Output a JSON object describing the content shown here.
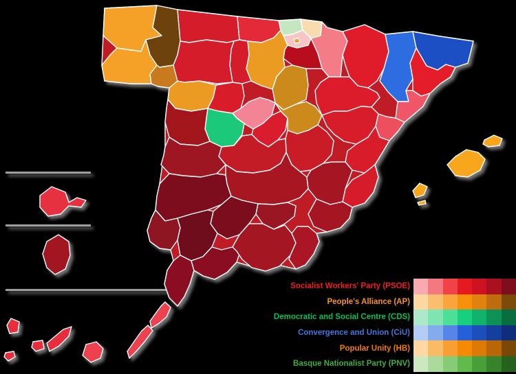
{
  "map": {
    "type": "choropleth",
    "subject": "spain-provinces-election-results",
    "stroke_color": "#ffffff",
    "canvas_background": "#000000",
    "divider_color": "#9e9e9e",
    "base_color": "#c01a26",
    "provinces": {
      "a-coruna": {
        "name": "A Coruña",
        "color": "#f5a026"
      },
      "lugo": {
        "name": "Lugo",
        "color": "#6e4209"
      },
      "pontevedra": {
        "name": "Pontevedra",
        "color": "#f5a026"
      },
      "ourense": {
        "name": "Ourense",
        "color": "#c87a1b"
      },
      "asturias": {
        "name": "Asturias",
        "color": "#d51c2a"
      },
      "cantabria": {
        "name": "Cantabria",
        "color": "#e42b37"
      },
      "bizkaia": {
        "name": "Biscay",
        "color": "#c4e6c0"
      },
      "gipuzkoa": {
        "name": "Gipuzkoa",
        "color": "#f8dcb0"
      },
      "alava": {
        "name": "Álava",
        "color": "#f6c6c6"
      },
      "navarra": {
        "name": "Navarre",
        "color": "#f37c86"
      },
      "la-rioja": {
        "name": "La Rioja",
        "color": "#b80f1f"
      },
      "burgos": {
        "name": "Burgos",
        "color": "#ec9b24"
      },
      "palencia": {
        "name": "Palencia",
        "color": "#d51c2a"
      },
      "leon": {
        "name": "León",
        "color": "#d51c2a"
      },
      "zamora": {
        "name": "Zamora",
        "color": "#ec9b24"
      },
      "valladolid": {
        "name": "Valladolid",
        "color": "#d81e2c"
      },
      "soria": {
        "name": "Soria",
        "color": "#cd8a1e"
      },
      "segovia": {
        "name": "Segovia",
        "color": "#f28495"
      },
      "avila": {
        "name": "Ávila",
        "color": "#1fc87a"
      },
      "salamanca": {
        "name": "Salamanca",
        "color": "#a2131f"
      },
      "madrid": {
        "name": "Madrid",
        "color": "#d91e2e"
      },
      "guadalajara": {
        "name": "Guadalajara",
        "color": "#cd8a1e"
      },
      "cuenca": {
        "name": "Cuenca",
        "color": "#c91a27"
      },
      "teruel": {
        "name": "Teruel",
        "color": "#d71d2a"
      },
      "zaragoza": {
        "name": "Zaragoza",
        "color": "#dc1e2b"
      },
      "huesca": {
        "name": "Huesca",
        "color": "#e01f2b"
      },
      "lleida": {
        "name": "Lleida",
        "color": "#2e6ce2"
      },
      "girona": {
        "name": "Girona",
        "color": "#1b50c4"
      },
      "barcelona": {
        "name": "Barcelona",
        "color": "#e51f2c"
      },
      "tarragona": {
        "name": "Tarragona",
        "color": "#ef5668"
      },
      "castellon": {
        "name": "Castellón",
        "color": "#ee4f5e"
      },
      "valencia": {
        "name": "Valencia",
        "color": "#d81d29"
      },
      "alicante": {
        "name": "Alicante",
        "color": "#d61d29"
      },
      "albacete": {
        "name": "Albacete",
        "color": "#a51523"
      },
      "murcia": {
        "name": "Murcia",
        "color": "#a51523"
      },
      "toledo": {
        "name": "Toledo",
        "color": "#c41a26"
      },
      "ciudad-real": {
        "name": "Ciudad Real",
        "color": "#a81624"
      },
      "caceres": {
        "name": "Cáceres",
        "color": "#9d1420"
      },
      "badajoz": {
        "name": "Badajoz",
        "color": "#7d0e1b"
      },
      "cordoba": {
        "name": "Córdoba",
        "color": "#7c101d"
      },
      "jaen": {
        "name": "Jaén",
        "color": "#9a1421"
      },
      "huelva": {
        "name": "Huelva",
        "color": "#8e1220"
      },
      "sevilla": {
        "name": "Seville",
        "color": "#6f0f1a"
      },
      "cadiz": {
        "name": "Cádiz",
        "color": "#8a1120"
      },
      "malaga": {
        "name": "Málaga",
        "color": "#8a1120"
      },
      "granada": {
        "name": "Granada",
        "color": "#a31523"
      },
      "almeria": {
        "name": "Almería",
        "color": "#ab1825"
      },
      "mallorca": {
        "name": "Mallorca",
        "color": "#f8a61e"
      },
      "menorca": {
        "name": "Menorca",
        "color": "#f8a61e"
      },
      "ibiza": {
        "name": "Ibiza",
        "color": "#f8a61e"
      },
      "formentera": {
        "name": "Formentera",
        "color": "#f8a61e"
      },
      "la-palma": {
        "name": "La Palma",
        "color": "#e62e3c"
      },
      "el-hierro": {
        "name": "El Hierro",
        "color": "#e62e3c"
      },
      "la-gomera": {
        "name": "La Gomera",
        "color": "#e62e3c"
      },
      "tenerife": {
        "name": "Tenerife",
        "color": "#e62e3c"
      },
      "gran-canaria": {
        "name": "Gran Canaria",
        "color": "#ec4250"
      },
      "fuerteventura": {
        "name": "Fuerteventura",
        "color": "#ec4250"
      },
      "lanzarote": {
        "name": "Lanzarote",
        "color": "#ec4250"
      },
      "ceuta": {
        "name": "Ceuta",
        "color": "#e63341"
      },
      "melilla": {
        "name": "Melilla",
        "color": "#a21523"
      }
    }
  },
  "legend": {
    "parties": [
      {
        "id": "psoe",
        "label": "Socialist Workers' Party (PSOE)",
        "text_color": "#ee1c25",
        "shades": [
          "#f7abb0",
          "#f3787f",
          "#ef4348",
          "#e51a20",
          "#cd1321",
          "#ab101f",
          "#7d0f1d"
        ]
      },
      {
        "id": "ap",
        "label": "People's Alliance (AP)",
        "text_color": "#f7941d",
        "shades": [
          "#fdd9a2",
          "#fbbd6e",
          "#f9a43c",
          "#f7910c",
          "#e08110",
          "#bd6c0e",
          "#7c4b0a"
        ]
      },
      {
        "id": "cds",
        "label": "Democratic and Social Centre (CDS)",
        "text_color": "#00c060",
        "shades": [
          "#abe9c9",
          "#7ee4b1",
          "#4cdf98",
          "#17d07f",
          "#11b26b",
          "#0c9156",
          "#086e40"
        ]
      },
      {
        "id": "ciu",
        "label": "Convergence and Union (CiU)",
        "text_color": "#4076e0",
        "shades": [
          "#b2cdf3",
          "#84abee",
          "#5685e7",
          "#2560da",
          "#1c4fbc",
          "#153f9d",
          "#0e2e7b"
        ]
      },
      {
        "id": "hb",
        "label": "Popular Unity (HB)",
        "text_color": "#f47a00",
        "shades": [
          "#fdd8a0",
          "#fbba66",
          "#f99e32",
          "#f78a04",
          "#dd7a06",
          "#b96606",
          "#7a4706"
        ]
      },
      {
        "id": "pnv",
        "label": "Basque Nationalist Party (PNV)",
        "text_color": "#3faf3c",
        "shades": [
          "#cbe8c1",
          "#aadb9c",
          "#86cc74",
          "#60bb4c",
          "#489f3a",
          "#36832b",
          "#26611d"
        ]
      }
    ]
  }
}
